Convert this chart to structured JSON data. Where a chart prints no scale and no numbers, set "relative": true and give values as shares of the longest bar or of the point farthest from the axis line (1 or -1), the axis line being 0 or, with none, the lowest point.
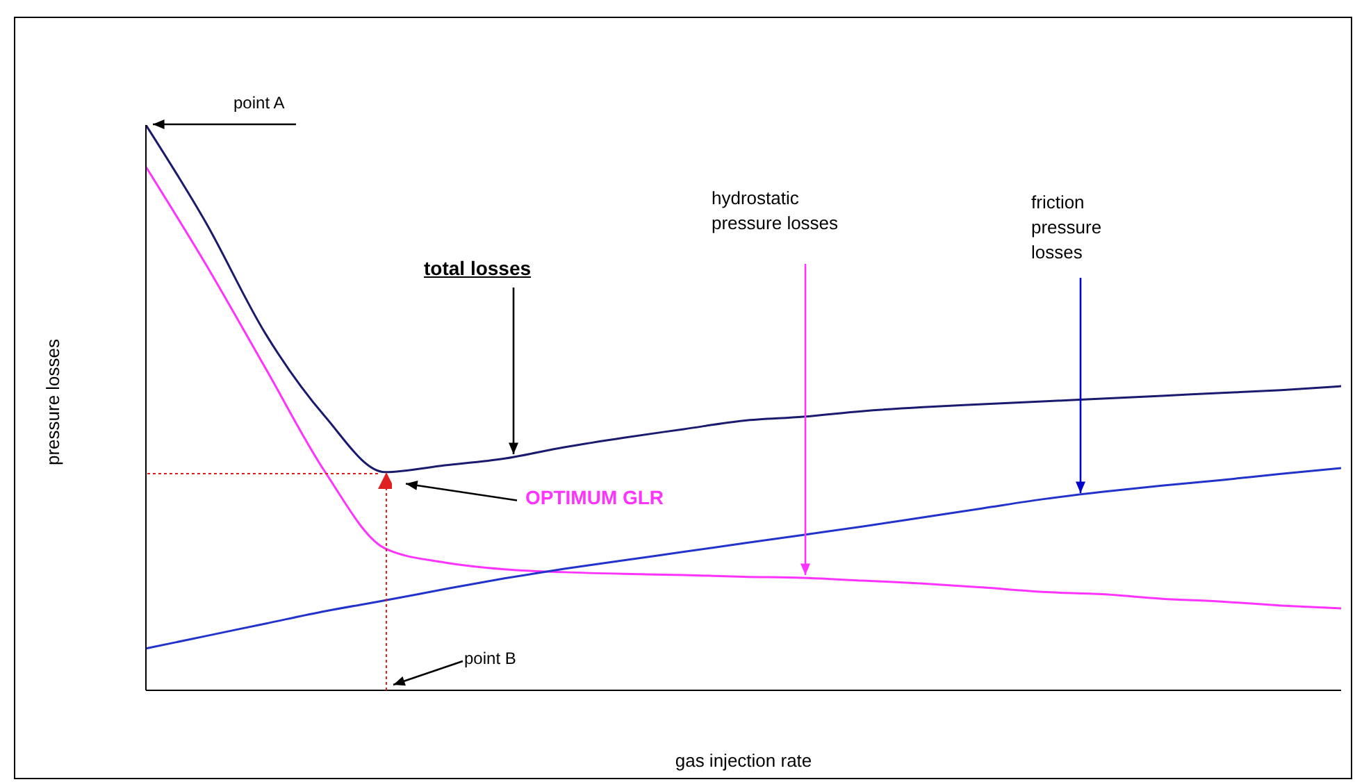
{
  "chart_data": {
    "type": "line",
    "relative": true,
    "xlabel": "gas injection rate",
    "ylabel": "pressure losses",
    "legend": false,
    "grid": false,
    "marker": "none",
    "line_style": "solid",
    "categories": [
      null,
      null,
      null,
      null,
      null,
      null,
      null,
      null,
      null,
      null,
      null,
      null,
      null,
      null,
      null,
      null,
      null,
      null,
      null,
      null,
      null
    ],
    "series": [
      {
        "color": "#1a1a6e",
        "values": [
          1,
          0.828,
          0.631,
          0.484,
          0.386,
          0.398,
          0.41,
          0.43,
          0.447,
          0.462,
          0.477,
          0.484,
          0.494,
          0.501,
          0.506,
          0.511,
          0.516,
          0.521,
          0.526,
          0.531,
          0.538
        ]
      },
      {
        "color": "#ff33ff",
        "values": [
          0.926,
          0.754,
          0.57,
          0.386,
          0.251,
          0.226,
          0.214,
          0.209,
          0.206,
          0.204,
          0.201,
          0.199,
          0.194,
          0.189,
          0.182,
          0.174,
          0.17,
          0.162,
          0.157,
          0.15,
          0.145
        ]
      },
      {
        "color": "#2233cc",
        "values": [
          0.074,
          0.096,
          0.118,
          0.14,
          0.159,
          0.179,
          0.198,
          0.215,
          0.23,
          0.245,
          0.26,
          0.275,
          0.29,
          0.306,
          0.322,
          0.338,
          0.351,
          0.362,
          0.372,
          0.383,
          0.393
        ]
      }
    ],
    "annotations": [
      "point A",
      "total losses",
      "hydrostatic pressure losses",
      "friction pressure losses",
      "OPTIMUM GLR",
      "point B"
    ]
  }
}
